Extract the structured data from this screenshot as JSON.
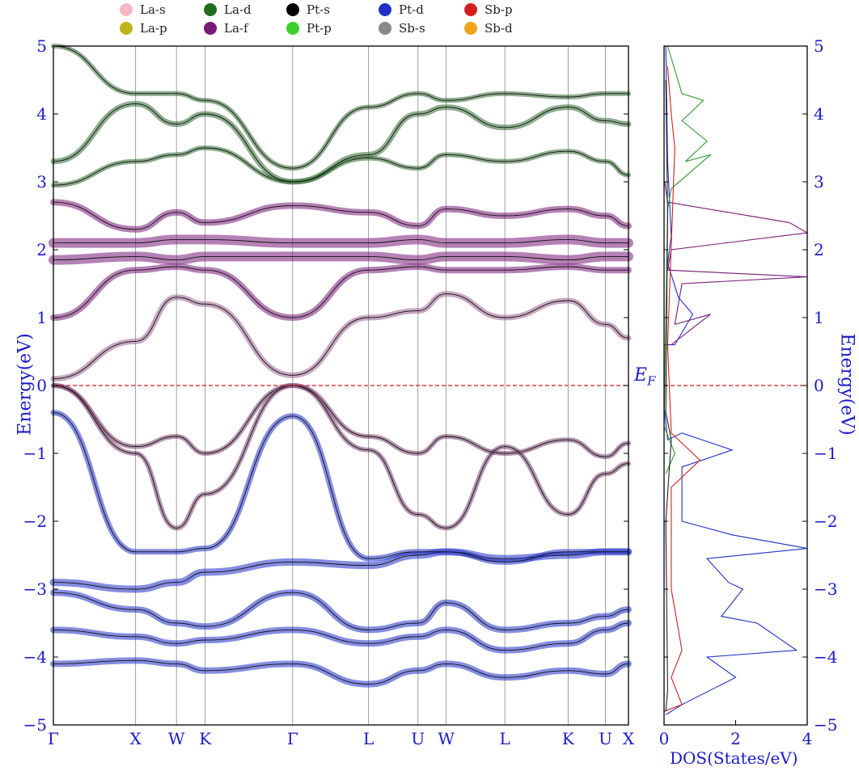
{
  "legend": [
    {
      "label": "La-s",
      "color": "#f4b8c4"
    },
    {
      "label": "La-d",
      "color": "#1f6e1f"
    },
    {
      "label": "Pt-s",
      "color": "#000000"
    },
    {
      "label": "Pt-d",
      "color": "#1f2fc8"
    },
    {
      "label": "Sb-p",
      "color": "#d41e1e"
    },
    {
      "label": "La-p",
      "color": "#c2b21c"
    },
    {
      "label": "La-f",
      "color": "#781a78"
    },
    {
      "label": "Pt-p",
      "color": "#3ecf2a"
    },
    {
      "label": "Sb-s",
      "color": "#888888"
    },
    {
      "label": "Sb-d",
      "color": "#f4a21c"
    }
  ],
  "labels": {
    "left_axis": "Energy(eV)",
    "right_axis": "Energy(eV)",
    "fermi": "E",
    "fermi_sub": "F",
    "dos_xlabel": "DOS(States/eV)"
  },
  "chart_data": [
    {
      "type": "line",
      "kind": "band-structure",
      "ylabel": "Energy(eV)",
      "ylim": [
        -5,
        5
      ],
      "yticks": [
        "5",
        "4",
        "3",
        "2",
        "1",
        "0",
        "−1",
        "−2",
        "−3",
        "−4",
        "−5"
      ],
      "kpath": [
        {
          "label": "Γ",
          "pos": 0.0
        },
        {
          "label": "X",
          "pos": 0.143
        },
        {
          "label": "W",
          "pos": 0.214
        },
        {
          "label": "K",
          "pos": 0.264
        },
        {
          "label": "Γ",
          "pos": 0.416
        },
        {
          "label": "L",
          "pos": 0.548
        },
        {
          "label": "U",
          "pos": 0.634
        },
        {
          "label": "W",
          "pos": 0.683
        },
        {
          "label": "L",
          "pos": 0.785
        },
        {
          "label": "K",
          "pos": 0.895
        },
        {
          "label": "U",
          "pos": 0.96
        },
        {
          "label": "X",
          "pos": 1.0
        }
      ],
      "fermi_level": 0,
      "bands": [
        {
          "x": [
            0,
            0.143,
            0.214,
            0.264,
            0.416,
            0.548,
            0.634,
            0.683,
            0.785,
            0.895,
            0.96,
            1.0
          ],
          "y": [
            -4.1,
            -4.05,
            -4.1,
            -4.2,
            -4.1,
            -4.4,
            -4.2,
            -4.1,
            -4.3,
            -4.2,
            -4.25,
            -4.1
          ],
          "color": "#1f2fc8",
          "w": 5
        },
        {
          "x": [
            0,
            0.143,
            0.214,
            0.264,
            0.416,
            0.548,
            0.634,
            0.683,
            0.785,
            0.895,
            0.96,
            1.0
          ],
          "y": [
            -3.6,
            -3.7,
            -3.8,
            -3.75,
            -3.6,
            -3.8,
            -3.7,
            -3.6,
            -3.9,
            -3.8,
            -3.6,
            -3.5
          ],
          "color": "#1f2fc8",
          "w": 5
        },
        {
          "x": [
            0,
            0.143,
            0.214,
            0.264,
            0.416,
            0.548,
            0.634,
            0.683,
            0.785,
            0.895,
            0.96,
            1.0
          ],
          "y": [
            -3.05,
            -3.3,
            -3.5,
            -3.55,
            -3.05,
            -3.6,
            -3.5,
            -3.2,
            -3.6,
            -3.5,
            -3.4,
            -3.3
          ],
          "color": "#1f2fc8",
          "w": 5
        },
        {
          "x": [
            0,
            0.143,
            0.214,
            0.264,
            0.416,
            0.548,
            0.634,
            0.683,
            0.785,
            0.895,
            0.96,
            1.0
          ],
          "y": [
            -2.9,
            -3.0,
            -2.9,
            -2.75,
            -2.6,
            -2.65,
            -2.5,
            -2.45,
            -2.55,
            -2.5,
            -2.45,
            -2.45
          ],
          "color": "#1f2fc8",
          "w": 6
        },
        {
          "x": [
            0,
            0.143,
            0.214,
            0.264,
            0.416,
            0.548,
            0.634,
            0.683,
            0.785,
            0.895,
            0.96,
            1.0
          ],
          "y": [
            -0.4,
            -2.45,
            -2.45,
            -2.4,
            -0.45,
            -2.55,
            -2.45,
            -2.45,
            -2.6,
            -2.45,
            -2.45,
            -2.45
          ],
          "color": "#1f2fc8",
          "w": 4
        },
        {
          "x": [
            0,
            0.143,
            0.214,
            0.264,
            0.416,
            0.548,
            0.634,
            0.683,
            0.785,
            0.895,
            0.96,
            1.0
          ],
          "y": [
            0,
            -0.9,
            -0.75,
            -1.0,
            0,
            -0.75,
            -1.0,
            -0.75,
            -1.0,
            -0.8,
            -1.05,
            -0.85
          ],
          "color": "#7a4070",
          "w": 3
        },
        {
          "x": [
            0,
            0.143,
            0.214,
            0.264,
            0.416,
            0.548,
            0.634,
            0.683,
            0.785,
            0.895,
            0.96,
            1.0
          ],
          "y": [
            0,
            -1.0,
            -2.1,
            -1.6,
            0,
            -0.95,
            -1.9,
            -2.1,
            -0.9,
            -1.9,
            -1.3,
            -1.15
          ],
          "color": "#7a4070",
          "w": 3
        },
        {
          "x": [
            0,
            0.143,
            0.214,
            0.264,
            0.416,
            0.548,
            0.634,
            0.683,
            0.785,
            0.895,
            0.96,
            1.0
          ],
          "y": [
            0.1,
            0.65,
            1.3,
            1.2,
            0.15,
            1.0,
            1.1,
            1.35,
            1.0,
            1.25,
            0.9,
            0.7
          ],
          "color": "#9a6090",
          "w": 4
        },
        {
          "x": [
            0,
            0.143,
            0.214,
            0.264,
            0.416,
            0.548,
            0.634,
            0.683,
            0.785,
            0.895,
            0.96,
            1.0
          ],
          "y": [
            1.0,
            1.7,
            1.75,
            1.7,
            1.0,
            1.7,
            1.75,
            1.7,
            1.7,
            1.75,
            1.7,
            1.7
          ],
          "color": "#781a78",
          "w": 5
        },
        {
          "x": [
            0,
            0.143,
            0.214,
            0.264,
            0.416,
            0.548,
            0.634,
            0.683,
            0.785,
            0.895,
            0.96,
            1.0
          ],
          "y": [
            1.85,
            1.9,
            1.85,
            1.9,
            1.9,
            1.9,
            1.85,
            1.9,
            1.9,
            1.85,
            1.9,
            1.9
          ],
          "color": "#781a78",
          "w": 9
        },
        {
          "x": [
            0,
            0.143,
            0.214,
            0.264,
            0.416,
            0.548,
            0.634,
            0.683,
            0.785,
            0.895,
            0.96,
            1.0
          ],
          "y": [
            2.1,
            2.1,
            2.15,
            2.15,
            2.1,
            2.1,
            2.15,
            2.1,
            2.1,
            2.15,
            2.1,
            2.1
          ],
          "color": "#781a78",
          "w": 9
        },
        {
          "x": [
            0,
            0.143,
            0.214,
            0.264,
            0.416,
            0.548,
            0.634,
            0.683,
            0.785,
            0.895,
            0.96,
            1.0
          ],
          "y": [
            2.7,
            2.3,
            2.55,
            2.4,
            2.65,
            2.55,
            2.35,
            2.6,
            2.5,
            2.6,
            2.5,
            2.35
          ],
          "color": "#781a78",
          "w": 5
        },
        {
          "x": [
            0,
            0.143,
            0.214,
            0.264,
            0.416,
            0.548,
            0.634,
            0.683,
            0.785,
            0.895,
            0.96,
            1.0
          ],
          "y": [
            2.95,
            3.3,
            3.4,
            3.5,
            3.0,
            3.35,
            3.2,
            3.4,
            3.3,
            3.45,
            3.3,
            3.1
          ],
          "color": "#2f6a2f",
          "w": 3
        },
        {
          "x": [
            0,
            0.143,
            0.214,
            0.264,
            0.416,
            0.548,
            0.634,
            0.683,
            0.785,
            0.895,
            0.96,
            1.0
          ],
          "y": [
            3.3,
            4.15,
            3.85,
            4.0,
            3.0,
            3.4,
            4.0,
            4.1,
            3.8,
            4.1,
            3.9,
            3.85
          ],
          "color": "#2f6a2f",
          "w": 4
        },
        {
          "x": [
            0,
            0.143,
            0.214,
            0.264,
            0.416,
            0.548,
            0.634,
            0.683,
            0.785,
            0.895,
            0.96,
            1.0
          ],
          "y": [
            5.0,
            4.3,
            4.3,
            4.2,
            3.2,
            4.1,
            4.3,
            4.2,
            4.3,
            4.25,
            4.3,
            4.3
          ],
          "color": "#2f6a2f",
          "w": 3
        }
      ]
    },
    {
      "type": "line",
      "kind": "density-of-states",
      "xlabel": "DOS(States/eV)",
      "ylabel": "Energy(eV)",
      "xlim": [
        0,
        4
      ],
      "ylim": [
        -5,
        5
      ],
      "xticks": [
        "0",
        "2",
        "4"
      ],
      "yticks": [
        "5",
        "4",
        "3",
        "2",
        "1",
        "0",
        "−1",
        "−2",
        "−3",
        "−4",
        "−5"
      ],
      "series": [
        {
          "color": "#1f2fc8",
          "points": [
            [
              0.05,
              5
            ],
            [
              0.1,
              3.3
            ],
            [
              0.2,
              2.2
            ],
            [
              0.1,
              1.8
            ],
            [
              0.4,
              1.3
            ],
            [
              0.8,
              1.05
            ],
            [
              0.3,
              0.6
            ],
            [
              0,
              0.6
            ],
            [
              0,
              -0.3
            ],
            [
              0.1,
              -0.8
            ],
            [
              0.5,
              -0.7
            ],
            [
              1.9,
              -0.95
            ],
            [
              0.5,
              -1.2
            ],
            [
              0.5,
              -2.0
            ],
            [
              1.9,
              -2.2
            ],
            [
              4.0,
              -2.4
            ],
            [
              1.2,
              -2.55
            ],
            [
              1.8,
              -2.9
            ],
            [
              2.2,
              -3.0
            ],
            [
              1.6,
              -3.4
            ],
            [
              2.6,
              -3.5
            ],
            [
              3.7,
              -3.9
            ],
            [
              1.2,
              -4.0
            ],
            [
              2.0,
              -4.3
            ],
            [
              0.5,
              -4.7
            ],
            [
              0.05,
              -4.85
            ]
          ]
        },
        {
          "color": "#781a78",
          "points": [
            [
              0.02,
              3.0
            ],
            [
              0.1,
              2.7
            ],
            [
              3.5,
              2.4
            ],
            [
              4.0,
              2.25
            ],
            [
              0.2,
              2.0
            ],
            [
              0.1,
              1.7
            ],
            [
              4.0,
              1.6
            ],
            [
              0.5,
              1.5
            ],
            [
              0.3,
              0.9
            ],
            [
              1.3,
              1.05
            ],
            [
              0.2,
              0.6
            ]
          ]
        },
        {
          "color": "#2f9a2f",
          "points": [
            [
              0.1,
              5
            ],
            [
              0.5,
              4.3
            ],
            [
              1.1,
              4.2
            ],
            [
              0.5,
              3.9
            ],
            [
              1.2,
              3.6
            ],
            [
              0.6,
              3.3
            ],
            [
              1.3,
              3.4
            ],
            [
              0.2,
              2.9
            ],
            [
              0.1,
              2.6
            ],
            [
              0,
              -0.6
            ],
            [
              0.3,
              -1.0
            ],
            [
              0.05,
              -1.3
            ]
          ]
        },
        {
          "color": "#d41e1e",
          "points": [
            [
              0.1,
              4.7
            ],
            [
              0.2,
              4.0
            ],
            [
              0.3,
              3.5
            ],
            [
              0.1,
              0.6
            ],
            [
              0.2,
              -0.7
            ],
            [
              1.0,
              -1.1
            ],
            [
              0.2,
              -1.5
            ],
            [
              0.2,
              -3.0
            ],
            [
              0.5,
              -3.9
            ],
            [
              0.2,
              -4.3
            ],
            [
              0.5,
              -4.7
            ],
            [
              0,
              -4.8
            ]
          ]
        },
        {
          "color": "#222222",
          "points": [
            [
              0.05,
              4.5
            ],
            [
              0.1,
              2.5
            ],
            [
              0.05,
              -0.4
            ],
            [
              0.2,
              -0.8
            ],
            [
              0.05,
              -2.0
            ],
            [
              0.1,
              -4.5
            ],
            [
              0.05,
              -4.8
            ]
          ]
        }
      ]
    }
  ]
}
